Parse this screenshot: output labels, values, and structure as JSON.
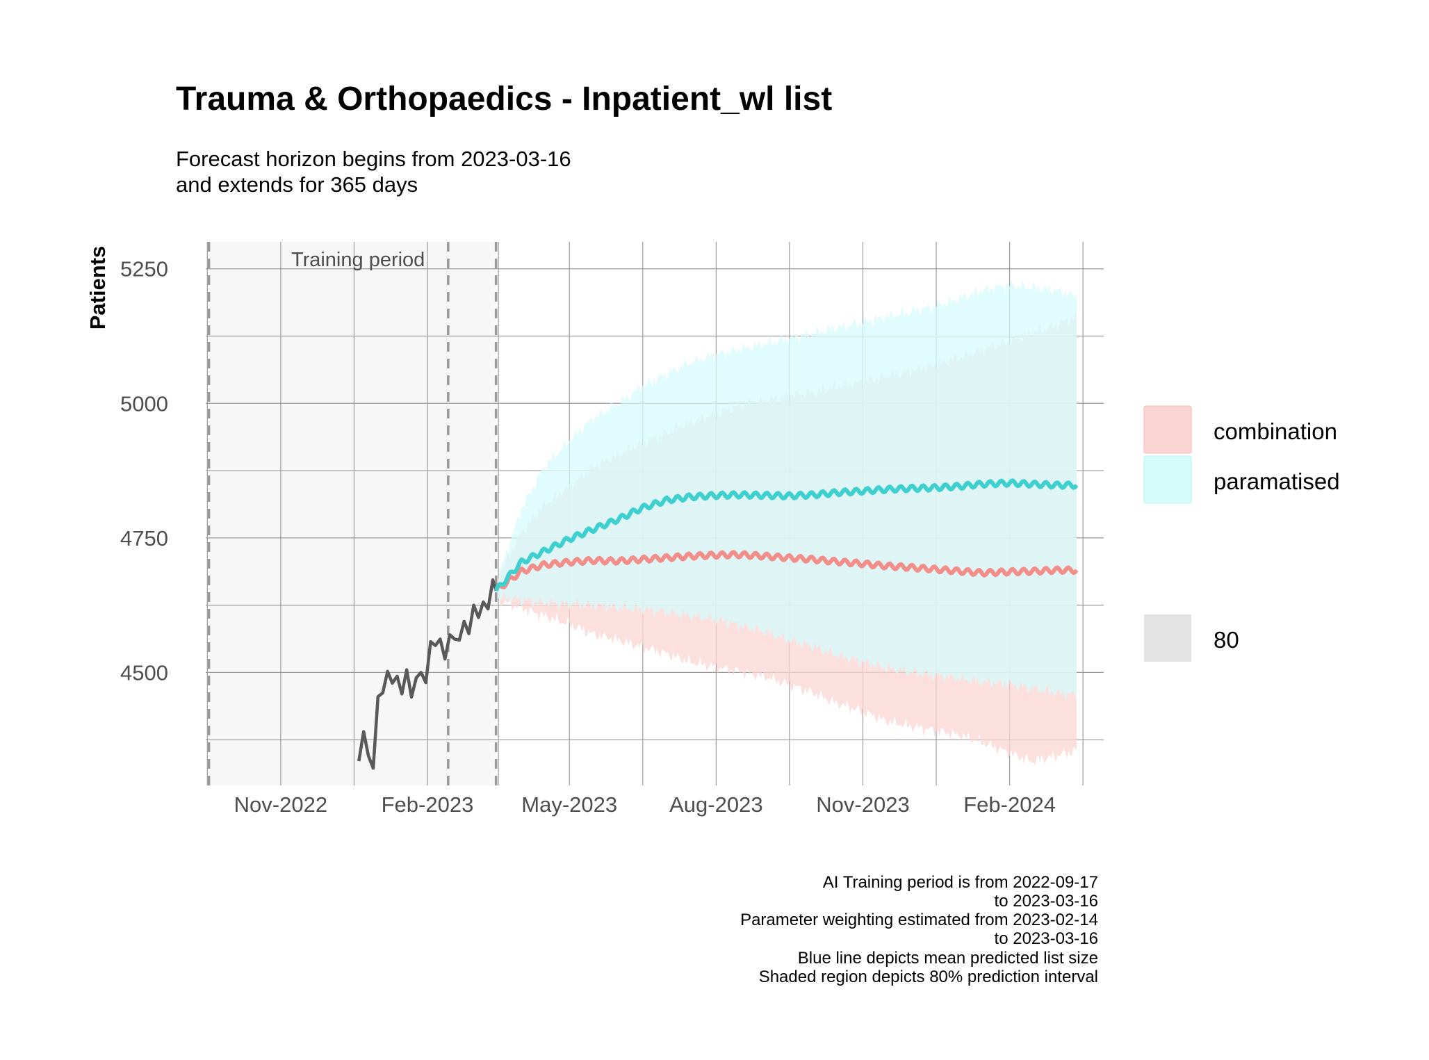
{
  "title": "Trauma & Orthopaedics - Inpatient_wl list",
  "subtitle_lines": [
    "Forecast horizon begins from 2023-03-16",
    "and extends for 365 days"
  ],
  "caption_lines": [
    "AI Training period is from 2022-09-17",
    "to 2023-03-16",
    "Parameter weighting estimated from 2023-02-14",
    "to 2023-03-16",
    "Blue line depicts mean predicted list size",
    "Shaded region depicts 80% prediction interval"
  ],
  "colors": {
    "combination": "#f28e8a",
    "combination_fill": "#fbd5d3",
    "paramatised": "#3ecfcf",
    "paramatised_fill": "#d6fbfb",
    "overlap_fill": "#d8eeee",
    "history": "#595959",
    "training_bg": "#f7f7f7",
    "grid": "#9a9a9a",
    "vline": "#999999",
    "level_swatch": "#e3e3e3"
  },
  "chart_data": {
    "type": "line",
    "title": "Trauma & Orthopaedics - Inpatient_wl list",
    "xlabel": "",
    "ylabel": "Patients",
    "x_type": "date",
    "xlim": [
      "2022-09-15",
      "2024-03-31"
    ],
    "ylim": [
      4290,
      5300
    ],
    "x_ticks": [
      {
        "date": "2022-11-01",
        "label": "Nov-2022"
      },
      {
        "date": "2023-02-01",
        "label": "Feb-2023"
      },
      {
        "date": "2023-05-01",
        "label": "May-2023"
      },
      {
        "date": "2023-08-01",
        "label": "Aug-2023"
      },
      {
        "date": "2023-11-01",
        "label": "Nov-2023"
      },
      {
        "date": "2024-02-01",
        "label": "Feb-2024"
      }
    ],
    "y_ticks": [
      4500,
      4750,
      5000,
      5250
    ],
    "grid": true,
    "training_period": {
      "label": "Training period",
      "start": "2022-09-17",
      "end": "2023-03-16"
    },
    "vlines": [
      "2022-09-17",
      "2023-02-14",
      "2023-03-16"
    ],
    "history": {
      "x": [
        "2022-12-20",
        "2022-12-23",
        "2022-12-26",
        "2022-12-29",
        "2023-01-01",
        "2023-01-04",
        "2023-01-07",
        "2023-01-10",
        "2023-01-13",
        "2023-01-16",
        "2023-01-19",
        "2023-01-22",
        "2023-01-25",
        "2023-01-28",
        "2023-01-31",
        "2023-02-03",
        "2023-02-06",
        "2023-02-09",
        "2023-02-12",
        "2023-02-15",
        "2023-02-18",
        "2023-02-21",
        "2023-02-24",
        "2023-02-27",
        "2023-03-02",
        "2023-03-05",
        "2023-03-08",
        "2023-03-11",
        "2023-03-14",
        "2023-03-16"
      ],
      "y": [
        4335,
        4390,
        4345,
        4322,
        4455,
        4462,
        4502,
        4480,
        4493,
        4460,
        4505,
        4454,
        4490,
        4500,
        4481,
        4557,
        4550,
        4562,
        4525,
        4570,
        4562,
        4560,
        4595,
        4572,
        4625,
        4602,
        4631,
        4618,
        4672,
        4652
      ]
    },
    "series": [
      {
        "name": "combination",
        "x": [
          "2023-03-16",
          "2023-04-01",
          "2023-04-15",
          "2023-05-01",
          "2023-05-15",
          "2023-06-01",
          "2023-06-15",
          "2023-07-01",
          "2023-07-15",
          "2023-08-01",
          "2023-08-15",
          "2023-09-01",
          "2023-09-15",
          "2023-10-01",
          "2023-10-15",
          "2023-11-01",
          "2023-11-15",
          "2023-12-01",
          "2023-12-15",
          "2024-01-01",
          "2024-01-15",
          "2024-02-01",
          "2024-02-15",
          "2024-03-01",
          "2024-03-14"
        ],
        "mean": [
          4652,
          4688,
          4700,
          4705,
          4708,
          4707,
          4710,
          4713,
          4716,
          4718,
          4719,
          4716,
          4713,
          4710,
          4706,
          4702,
          4698,
          4695,
          4692,
          4688,
          4685,
          4687,
          4688,
          4690,
          4690
        ],
        "lower": [
          4635,
          4620,
          4605,
          4590,
          4572,
          4560,
          4548,
          4535,
          4520,
          4510,
          4502,
          4492,
          4478,
          4462,
          4443,
          4428,
          4410,
          4400,
          4393,
          4383,
          4370,
          4350,
          4335,
          4345,
          4355
        ],
        "upper": [
          4670,
          4760,
          4810,
          4845,
          4880,
          4905,
          4925,
          4945,
          4965,
          4980,
          4995,
          5005,
          5015,
          5020,
          5030,
          5040,
          5050,
          5060,
          5070,
          5085,
          5100,
          5115,
          5130,
          5145,
          5160
        ]
      },
      {
        "name": "paramatised",
        "x": [
          "2023-03-16",
          "2023-04-01",
          "2023-04-15",
          "2023-05-01",
          "2023-05-15",
          "2023-06-01",
          "2023-06-15",
          "2023-07-01",
          "2023-07-15",
          "2023-08-01",
          "2023-08-15",
          "2023-09-01",
          "2023-09-15",
          "2023-10-01",
          "2023-10-15",
          "2023-11-01",
          "2023-11-15",
          "2023-12-01",
          "2023-12-15",
          "2024-01-01",
          "2024-01-15",
          "2024-02-01",
          "2024-02-15",
          "2024-03-01",
          "2024-03-14"
        ],
        "mean": [
          4652,
          4705,
          4725,
          4748,
          4765,
          4785,
          4805,
          4820,
          4826,
          4829,
          4830,
          4829,
          4828,
          4830,
          4834,
          4837,
          4840,
          4842,
          4843,
          4846,
          4850,
          4852,
          4850,
          4848,
          4848
        ],
        "lower": [
          4640,
          4635,
          4630,
          4627,
          4625,
          4620,
          4617,
          4612,
          4605,
          4598,
          4588,
          4575,
          4560,
          4548,
          4532,
          4520,
          4508,
          4500,
          4495,
          4488,
          4482,
          4478,
          4470,
          4462,
          4458
        ],
        "upper": [
          4665,
          4805,
          4880,
          4930,
          4970,
          5000,
          5030,
          5055,
          5075,
          5090,
          5100,
          5110,
          5120,
          5130,
          5140,
          5150,
          5160,
          5170,
          5180,
          5195,
          5210,
          5220,
          5215,
          5210,
          5200
        ]
      }
    ],
    "legend": {
      "position": "right",
      "model_entries": [
        "combination",
        "paramatised"
      ],
      "level_entries": [
        "80"
      ]
    }
  }
}
